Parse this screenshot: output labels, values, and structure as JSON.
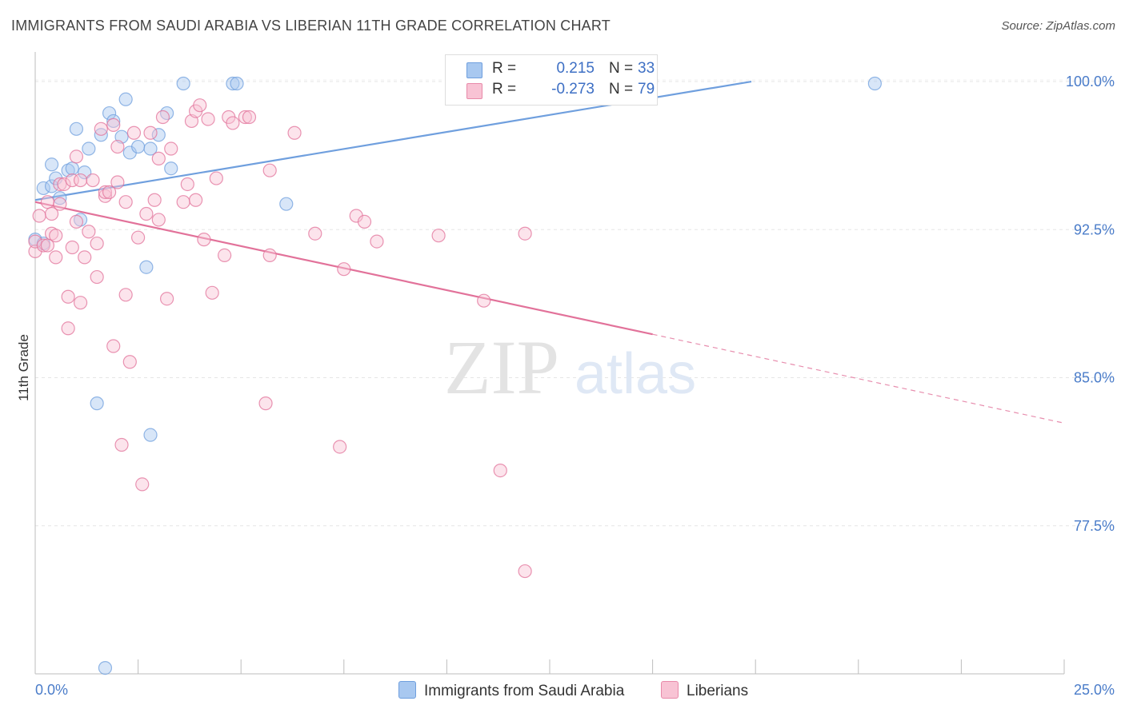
{
  "header": {
    "title": "IMMIGRANTS FROM SAUDI ARABIA VS LIBERIAN 11TH GRADE CORRELATION CHART",
    "source": "Source: ZipAtlas.com"
  },
  "watermark": {
    "part1": "ZIP",
    "part2": "atlas"
  },
  "legend": {
    "series": [
      {
        "r_label": "R =",
        "r_value": "0.215",
        "n_label": "N =",
        "n_value": "33",
        "color": "#a8c8f0",
        "border": "#6f9fde"
      },
      {
        "r_label": "R =",
        "r_value": "-0.273",
        "n_label": "N =",
        "n_value": "79",
        "color": "#f8c3d4",
        "border": "#e88aa9"
      }
    ]
  },
  "bottom_legend": {
    "items": [
      {
        "label": "Immigrants from Saudi Arabia",
        "color": "#a8c8f0"
      },
      {
        "label": "Liberians",
        "color": "#f8c3d4"
      }
    ]
  },
  "chart_data": {
    "type": "scatter",
    "title": "IMMIGRANTS FROM SAUDI ARABIA VS LIBERIAN 11TH GRADE CORRELATION CHART",
    "xlabel": "",
    "ylabel": "11th Grade",
    "xlim": [
      0,
      25
    ],
    "ylim": [
      70.0,
      101.5
    ],
    "x_tick_labels": [
      "0.0%",
      "25.0%"
    ],
    "y_ticks": [
      77.5,
      85.0,
      92.5,
      100.0
    ],
    "y_tick_labels": [
      "77.5%",
      "85.0%",
      "92.5%",
      "100.0%"
    ],
    "grid": true,
    "series": [
      {
        "name": "Immigrants from Saudi Arabia",
        "color": "#6f9fde",
        "fill": "#a8c8f0",
        "trend": {
          "x": [
            0.0,
            17.4
          ],
          "y": [
            94.0,
            100.0
          ],
          "dash_to": null
        },
        "points": [
          [
            0.0,
            92.0
          ],
          [
            0.2,
            91.8
          ],
          [
            0.2,
            94.6
          ],
          [
            0.4,
            94.7
          ],
          [
            0.4,
            95.8
          ],
          [
            0.5,
            95.1
          ],
          [
            0.6,
            94.1
          ],
          [
            0.8,
            95.5
          ],
          [
            0.9,
            95.6
          ],
          [
            1.0,
            97.6
          ],
          [
            1.1,
            93.0
          ],
          [
            1.2,
            95.4
          ],
          [
            1.3,
            96.6
          ],
          [
            1.5,
            83.7
          ],
          [
            1.6,
            97.3
          ],
          [
            1.7,
            70.3
          ],
          [
            1.8,
            98.4
          ],
          [
            1.9,
            98.0
          ],
          [
            2.1,
            97.2
          ],
          [
            2.2,
            99.1
          ],
          [
            2.3,
            96.4
          ],
          [
            2.5,
            96.7
          ],
          [
            2.7,
            90.6
          ],
          [
            2.8,
            96.6
          ],
          [
            2.8,
            82.1
          ],
          [
            3.0,
            97.3
          ],
          [
            3.2,
            98.4
          ],
          [
            3.3,
            95.6
          ],
          [
            3.6,
            99.9
          ],
          [
            4.8,
            99.9
          ],
          [
            4.9,
            99.9
          ],
          [
            6.1,
            93.8
          ],
          [
            20.4,
            99.9
          ]
        ]
      },
      {
        "name": "Liberians",
        "color": "#e2729a",
        "fill": "#f8c3d4",
        "trend": {
          "x": [
            0.0,
            15.0
          ],
          "y": [
            93.9,
            87.2
          ],
          "dash_to": [
            25.0,
            82.7
          ]
        },
        "points": [
          [
            0.0,
            91.4
          ],
          [
            0.0,
            91.9
          ],
          [
            0.1,
            93.2
          ],
          [
            0.2,
            91.7
          ],
          [
            0.3,
            93.9
          ],
          [
            0.3,
            91.7
          ],
          [
            0.4,
            92.3
          ],
          [
            0.4,
            93.3
          ],
          [
            0.5,
            91.1
          ],
          [
            0.5,
            92.2
          ],
          [
            0.6,
            93.8
          ],
          [
            0.6,
            94.8
          ],
          [
            0.7,
            94.8
          ],
          [
            0.8,
            89.1
          ],
          [
            0.8,
            87.5
          ],
          [
            0.9,
            95.0
          ],
          [
            0.9,
            91.6
          ],
          [
            1.0,
            96.2
          ],
          [
            1.0,
            92.9
          ],
          [
            1.1,
            95.0
          ],
          [
            1.1,
            88.8
          ],
          [
            1.2,
            91.1
          ],
          [
            1.3,
            92.4
          ],
          [
            1.4,
            95.0
          ],
          [
            1.5,
            91.8
          ],
          [
            1.5,
            90.1
          ],
          [
            1.6,
            97.6
          ],
          [
            1.7,
            94.2
          ],
          [
            1.7,
            94.4
          ],
          [
            1.8,
            94.4
          ],
          [
            1.9,
            86.6
          ],
          [
            1.9,
            97.8
          ],
          [
            2.0,
            94.9
          ],
          [
            2.0,
            96.7
          ],
          [
            2.1,
            81.6
          ],
          [
            2.2,
            93.9
          ],
          [
            2.2,
            89.2
          ],
          [
            2.3,
            85.8
          ],
          [
            2.4,
            97.4
          ],
          [
            2.5,
            92.1
          ],
          [
            2.6,
            79.6
          ],
          [
            2.7,
            93.3
          ],
          [
            2.8,
            97.4
          ],
          [
            2.9,
            94.0
          ],
          [
            3.0,
            93.0
          ],
          [
            3.0,
            96.1
          ],
          [
            3.1,
            98.2
          ],
          [
            3.2,
            89.0
          ],
          [
            3.3,
            96.6
          ],
          [
            3.6,
            93.9
          ],
          [
            3.7,
            94.8
          ],
          [
            3.8,
            98.0
          ],
          [
            3.9,
            98.5
          ],
          [
            3.9,
            94.0
          ],
          [
            4.0,
            98.8
          ],
          [
            4.1,
            92.0
          ],
          [
            4.2,
            98.1
          ],
          [
            4.3,
            89.3
          ],
          [
            4.4,
            95.1
          ],
          [
            4.6,
            91.2
          ],
          [
            4.7,
            98.2
          ],
          [
            4.8,
            97.9
          ],
          [
            5.1,
            98.2
          ],
          [
            5.2,
            98.2
          ],
          [
            5.6,
            83.7
          ],
          [
            5.7,
            91.2
          ],
          [
            5.7,
            95.5
          ],
          [
            6.3,
            97.4
          ],
          [
            6.8,
            92.3
          ],
          [
            7.4,
            81.5
          ],
          [
            7.5,
            90.5
          ],
          [
            7.8,
            93.2
          ],
          [
            8.0,
            92.9
          ],
          [
            8.3,
            91.9
          ],
          [
            9.8,
            92.2
          ],
          [
            10.9,
            88.9
          ],
          [
            11.3,
            80.3
          ],
          [
            11.9,
            75.2
          ],
          [
            11.9,
            92.3
          ]
        ]
      }
    ]
  }
}
